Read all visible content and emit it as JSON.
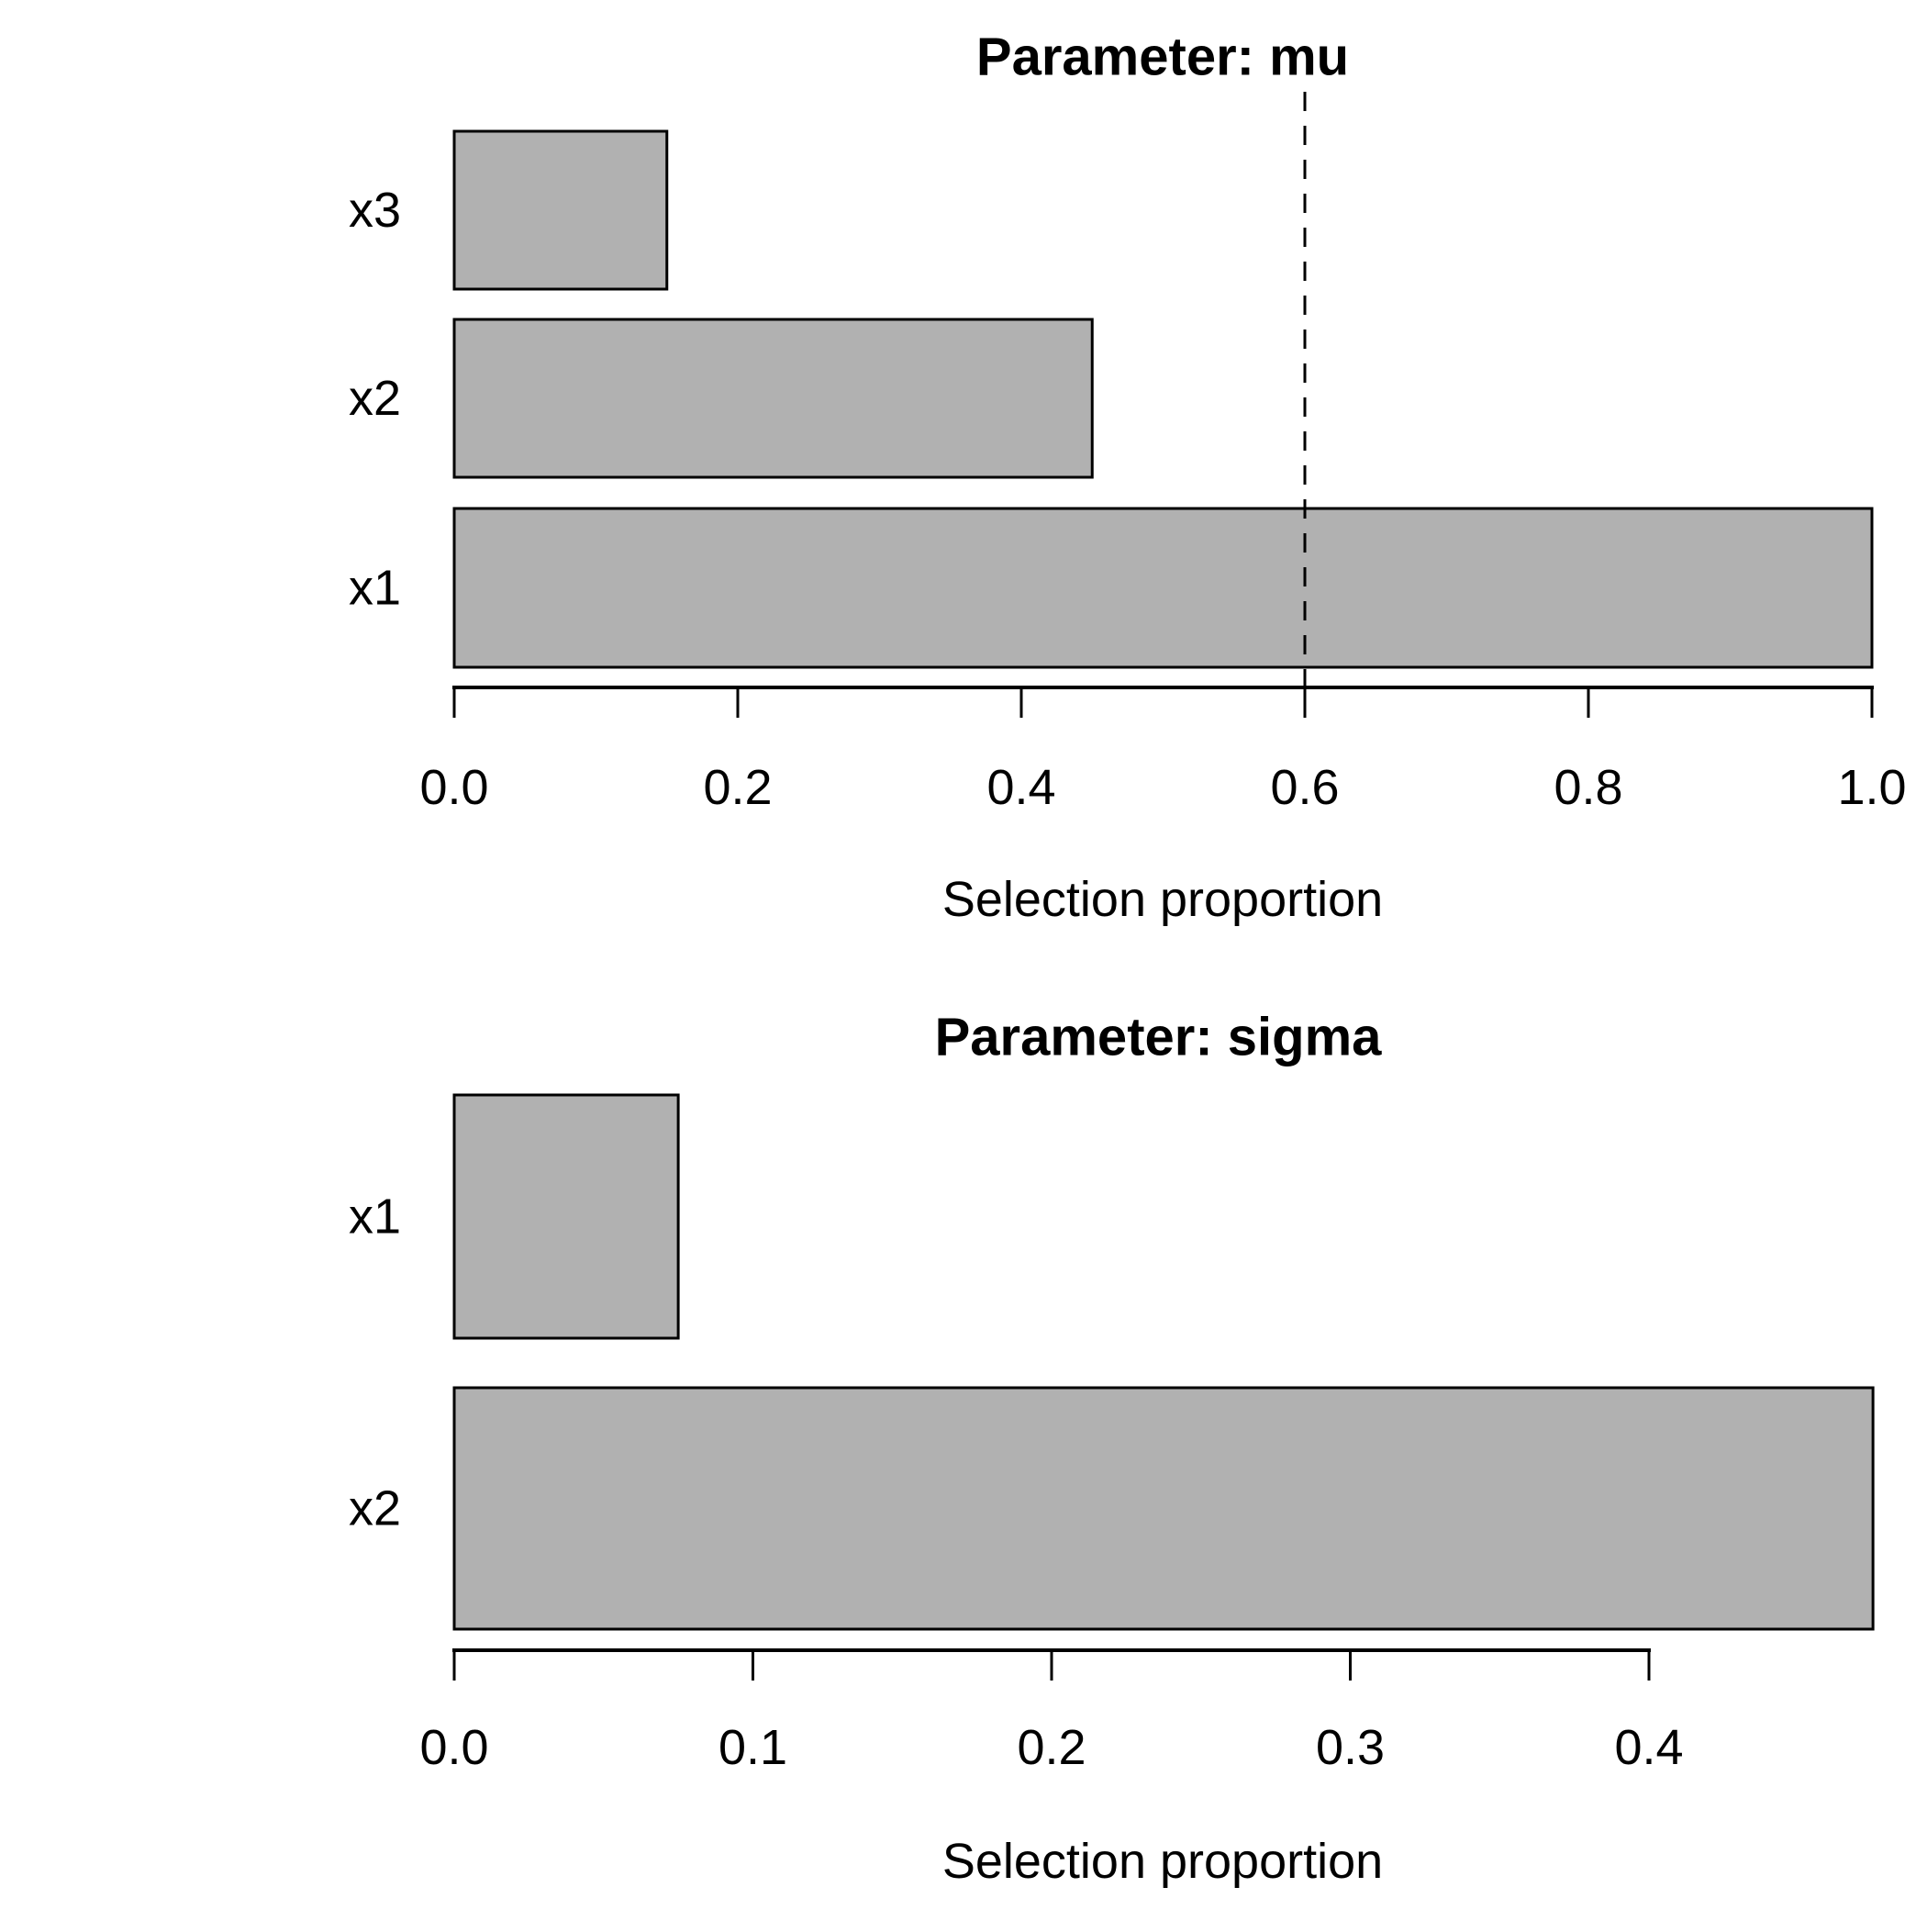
{
  "figure": {
    "background_color": "#ffffff",
    "bar_fill_color": "#b1b1b1",
    "bar_stroke_color": "#000000",
    "threshold_line_color": "#000000"
  },
  "chart_data": [
    {
      "type": "bar",
      "orientation": "horizontal",
      "title": "Parameter: mu",
      "xlabel": "Selection proportion",
      "categories": [
        "x3",
        "x2",
        "x1"
      ],
      "values": [
        0.15,
        0.45,
        1.0
      ],
      "xticks": [
        0.0,
        0.2,
        0.4,
        0.6,
        0.8,
        1.0
      ],
      "xtick_labels": [
        "0.0",
        "0.2",
        "0.4",
        "0.6",
        "0.8",
        "1.0"
      ],
      "xlim": [
        0.0,
        1.0
      ],
      "threshold_line": 0.6,
      "threshold_style": "dashed",
      "grid": false,
      "legend": null
    },
    {
      "type": "bar",
      "orientation": "horizontal",
      "title": "Parameter: sigma",
      "xlabel": "Selection proportion",
      "categories": [
        "x1",
        "x2"
      ],
      "values": [
        0.075,
        0.475
      ],
      "xticks": [
        0.0,
        0.1,
        0.2,
        0.3,
        0.4
      ],
      "xtick_labels": [
        "0.0",
        "0.1",
        "0.2",
        "0.3",
        "0.4"
      ],
      "xlim": [
        0.0,
        0.475
      ],
      "threshold_line": null,
      "threshold_style": null,
      "grid": false,
      "legend": null
    }
  ]
}
